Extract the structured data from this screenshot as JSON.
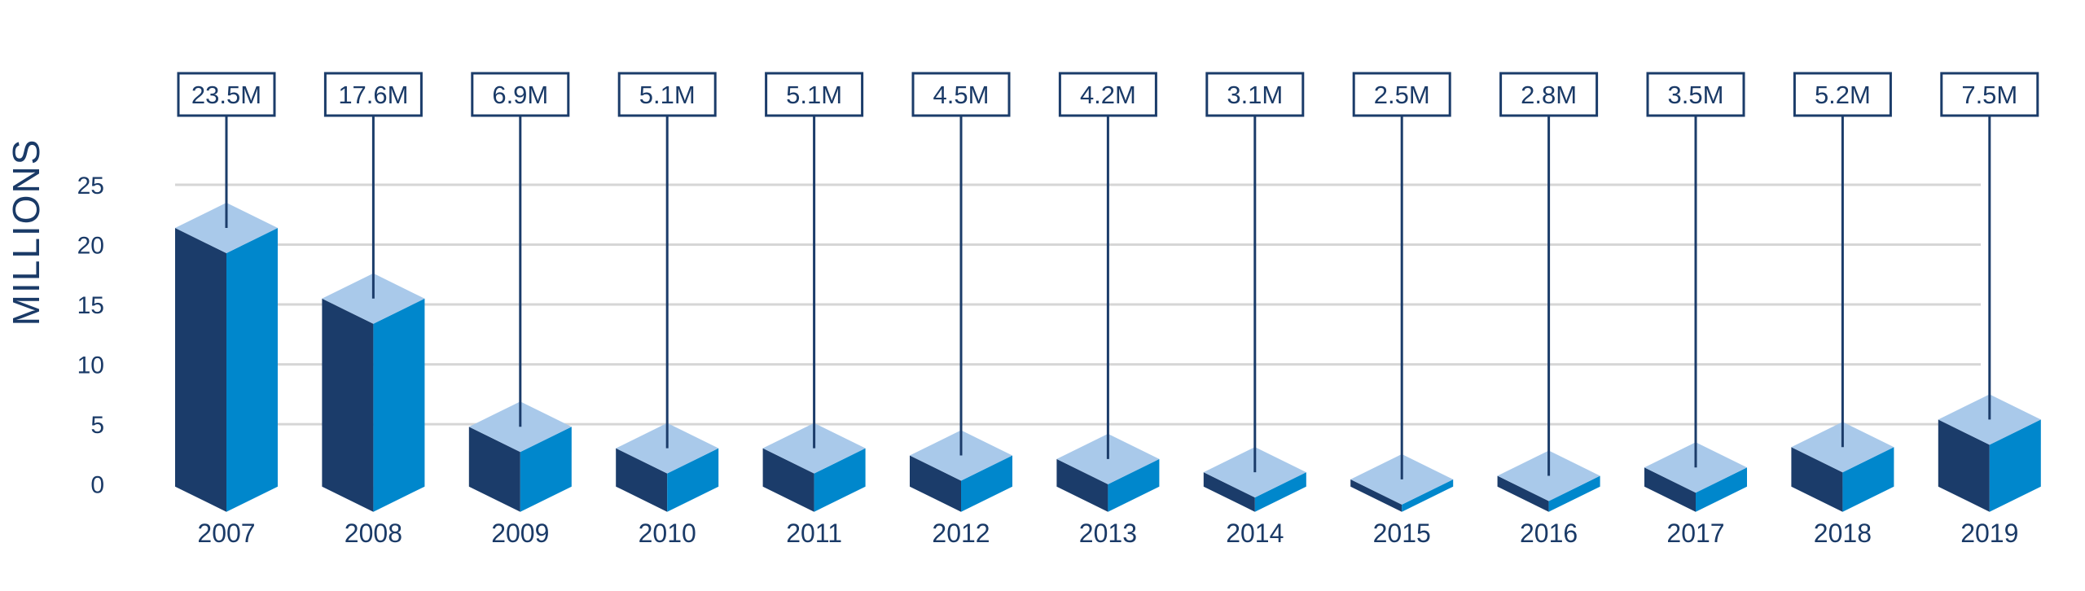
{
  "chart_data": {
    "type": "bar",
    "ylabel": "MILLIONS",
    "xlabel": "",
    "title": "",
    "ylim": [
      0,
      25
    ],
    "yticks": [
      "0",
      "5",
      "10",
      "15",
      "20",
      "25"
    ],
    "categories": [
      "2007",
      "2008",
      "2009",
      "2010",
      "2011",
      "2012",
      "2013",
      "2014",
      "2015",
      "2016",
      "2017",
      "2018",
      "2019"
    ],
    "values": [
      23.5,
      17.6,
      6.9,
      5.1,
      5.1,
      4.5,
      4.2,
      3.1,
      2.5,
      2.8,
      3.5,
      5.2,
      7.5
    ],
    "data_labels": [
      "23.5M",
      "17.6M",
      "6.9M",
      "5.1M",
      "5.1M",
      "4.5M",
      "4.2M",
      "3.1M",
      "2.5M",
      "2.8M",
      "3.5M",
      "5.2M",
      "7.5M"
    ],
    "grid": true,
    "colors": {
      "left_face": "#1b3c6a",
      "right_face": "#0087cc",
      "top_face": "#a9c9ea",
      "grid": "#d6d6d6",
      "text": "#1a3a67"
    }
  }
}
